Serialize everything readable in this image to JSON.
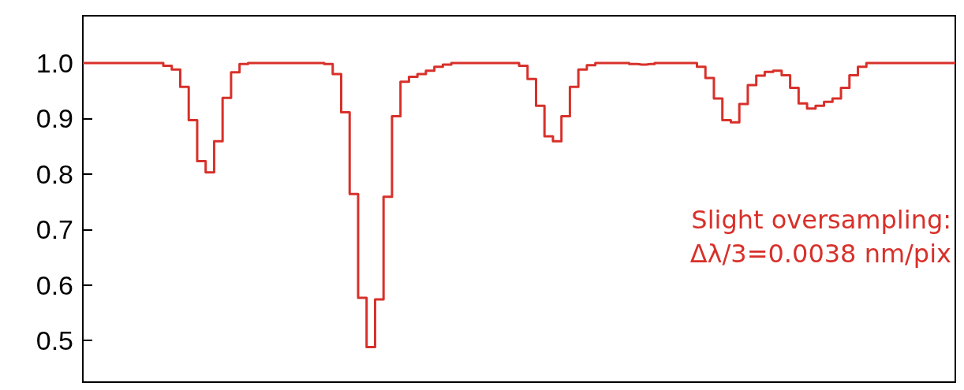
{
  "chart_data": {
    "type": "step",
    "categories": [
      null,
      null,
      null,
      null,
      null,
      null,
      null,
      null,
      null,
      null,
      null,
      null,
      null,
      null,
      null,
      null,
      null,
      null,
      null,
      null,
      null,
      null,
      null,
      null,
      null,
      null,
      null,
      null,
      null,
      null,
      null,
      null,
      null,
      null,
      null,
      null,
      null,
      null,
      null,
      null,
      null,
      null,
      null,
      null,
      null,
      null,
      null,
      null,
      null,
      null,
      null,
      null,
      null,
      null,
      null,
      null,
      null,
      null,
      null,
      null,
      null,
      null,
      null,
      null,
      null,
      null,
      null,
      null,
      null,
      null,
      null,
      null,
      null,
      null,
      null,
      null,
      null,
      null,
      null,
      null,
      null,
      null,
      null,
      null,
      null,
      null,
      null,
      null,
      null,
      null,
      null,
      null,
      null,
      null,
      null,
      null,
      null,
      null,
      null,
      null,
      null,
      null,
      null,
      null
    ],
    "series": [
      {
        "color": "#d8302a",
        "values": [
          1.0,
          1.0,
          1.0,
          1.0,
          1.0,
          1.0,
          1.0,
          1.0,
          1.0,
          1.0,
          0.995,
          0.988,
          0.957,
          0.897,
          0.823,
          0.803,
          0.859,
          0.937,
          0.983,
          0.998,
          1.0,
          1.0,
          1.0,
          1.0,
          1.0,
          1.0,
          1.0,
          1.0,
          1.0,
          0.998,
          0.98,
          0.911,
          0.764,
          0.577,
          0.488,
          0.574,
          0.759,
          0.904,
          0.966,
          0.975,
          0.98,
          0.986,
          0.993,
          0.997,
          1.0,
          1.0,
          1.0,
          1.0,
          1.0,
          1.0,
          1.0,
          1.0,
          0.995,
          0.971,
          0.923,
          0.868,
          0.859,
          0.904,
          0.957,
          0.988,
          0.996,
          1.0,
          1.0,
          1.0,
          1.0,
          0.998,
          0.997,
          0.998,
          1.0,
          1.0,
          1.0,
          1.0,
          1.0,
          0.993,
          0.973,
          0.936,
          0.897,
          0.893,
          0.926,
          0.96,
          0.977,
          0.984,
          0.986,
          0.978,
          0.955,
          0.927,
          0.918,
          0.923,
          0.93,
          0.936,
          0.955,
          0.978,
          0.993,
          1.0,
          1.0,
          1.0,
          1.0,
          1.0,
          1.0,
          1.0,
          1.0,
          1.0,
          1.0,
          1.0
        ]
      }
    ],
    "ylim": [
      0.425,
      1.085
    ],
    "yticks": [
      0.5,
      0.6,
      0.7,
      0.8,
      0.9,
      {
        "value": 1,
        "label": "1.0"
      }
    ],
    "tick_labels": "y",
    "grid": false,
    "marker": "none",
    "line_style": "solid",
    "annotations": [
      "Slight oversampling:",
      "Δλ/3=0.0038 nm/pix"
    ]
  }
}
